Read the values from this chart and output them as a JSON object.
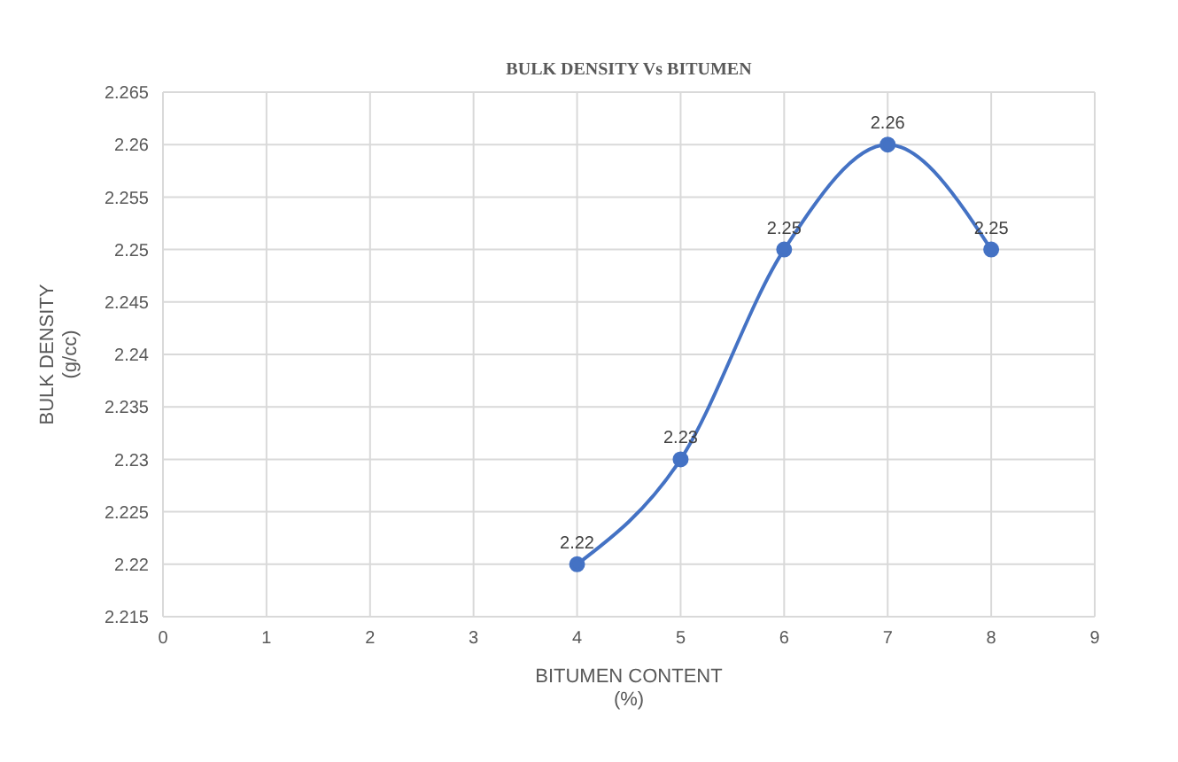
{
  "chart_data": {
    "type": "line",
    "title": "BULK DENSITY Vs BITUMEN",
    "xlabel": "BITUMEN CONTENT\n(%)",
    "ylabel": "BULK DENSITY\n(g/cc)",
    "x": [
      4,
      5,
      6,
      7,
      8
    ],
    "series": [
      {
        "color": "#4472c4",
        "values": [
          2.22,
          2.23,
          2.25,
          2.26,
          2.25
        ]
      }
    ],
    "xlim": [
      0,
      9
    ],
    "xticks": [
      0,
      1,
      2,
      3,
      4,
      5,
      6,
      7,
      8,
      9
    ],
    "ylim": [
      2.215,
      2.265
    ],
    "yticks": [
      2.215,
      2.22,
      2.225,
      2.23,
      2.235,
      2.24,
      2.245,
      2.25,
      2.255,
      2.26,
      2.265
    ],
    "grid": true,
    "marker": "circle",
    "data_labels": true
  }
}
